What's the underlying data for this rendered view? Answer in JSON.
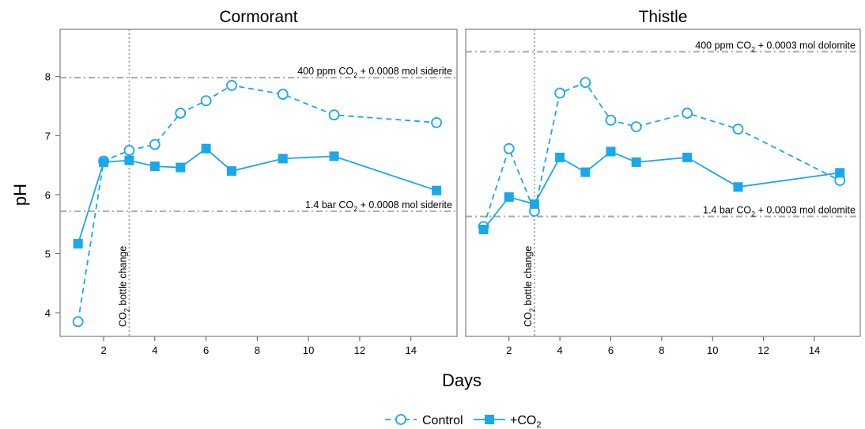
{
  "chart_data": {
    "type": "line",
    "ylabel": "pH",
    "xlabel": "Days",
    "x_ticks": [
      2,
      4,
      6,
      8,
      10,
      12,
      14
    ],
    "y_ticks": [
      4,
      5,
      6,
      7,
      8
    ],
    "xlim": [
      0.3,
      15.8
    ],
    "ylim": [
      3.6,
      8.8
    ],
    "colors": {
      "series": "#1AA7EC",
      "reference": "#aaaaaa",
      "frame": "#888888"
    },
    "legend": {
      "position": "bottom",
      "entries": [
        {
          "label": "Control",
          "style": "dashed",
          "marker": "open-circle"
        },
        {
          "label": "+CO",
          "sub": "2",
          "style": "solid",
          "marker": "filled-square"
        }
      ]
    },
    "panels": [
      {
        "title": "Cormorant",
        "vline": {
          "x": 3,
          "label_pre": "CO",
          "label_sub": "2",
          "label_post": " bottle change"
        },
        "hlines": [
          {
            "y": 7.98,
            "pre": "400 ppm CO",
            "sub": "2",
            "post": " + 0.0008 mol siderite"
          },
          {
            "y": 5.72,
            "pre": "1.4 bar CO",
            "sub": "2",
            "post": " + 0.0008 mol siderite"
          }
        ],
        "series": [
          {
            "name": "Control",
            "x": [
              1,
              2,
              3,
              4,
              5,
              6,
              7,
              9,
              11,
              15
            ],
            "y": [
              3.85,
              6.57,
              6.75,
              6.85,
              7.38,
              7.59,
              7.85,
              7.7,
              7.35,
              7.22
            ]
          },
          {
            "name": "+CO2",
            "x": [
              1,
              2,
              3,
              4,
              5,
              6,
              7,
              9,
              11,
              15
            ],
            "y": [
              5.17,
              6.55,
              6.58,
              6.48,
              6.46,
              6.78,
              6.4,
              6.61,
              6.65,
              6.07
            ]
          }
        ]
      },
      {
        "title": "Thistle",
        "vline": {
          "x": 3,
          "label_pre": "CO",
          "label_sub": "2",
          "label_post": " bottle change"
        },
        "hlines": [
          {
            "y": 8.42,
            "pre": "400 ppm CO",
            "sub": "2",
            "post": " + 0.0003 mol dolomite"
          },
          {
            "y": 5.63,
            "pre": "1.4 bar CO",
            "sub": "2",
            "post": " + 0.0003 mol dolomite"
          }
        ],
        "series": [
          {
            "name": "Control",
            "x": [
              1,
              2,
              3,
              4,
              5,
              6,
              7,
              9,
              11,
              15
            ],
            "y": [
              5.46,
              6.78,
              5.72,
              7.72,
              7.9,
              7.26,
              7.15,
              7.38,
              7.11,
              6.24
            ]
          },
          {
            "name": "+CO2",
            "x": [
              1,
              2,
              3,
              4,
              5,
              6,
              7,
              9,
              11,
              15
            ],
            "y": [
              5.41,
              5.96,
              5.84,
              6.63,
              6.38,
              6.73,
              6.55,
              6.63,
              6.13,
              6.37
            ]
          }
        ]
      }
    ]
  }
}
